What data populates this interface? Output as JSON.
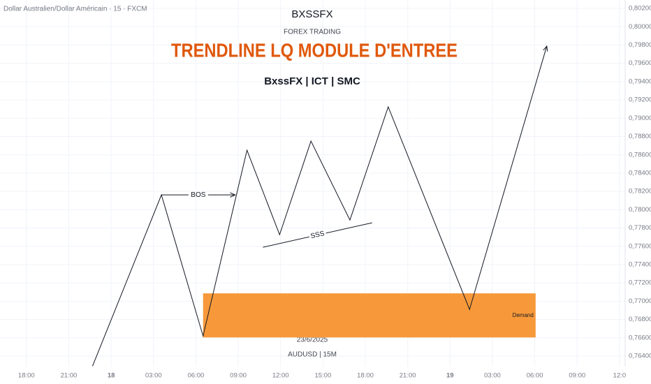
{
  "chart_data": {
    "type": "line",
    "symbol": "Dollar Australien/Dollar Américain · 15 · FXCM",
    "brand": "BXSSFX",
    "subtitle": "FOREX TRADING",
    "title": "TRENDLINE LQ MODULE D'ENTREE",
    "title_color": "#e0580c",
    "tagline": "BxssFX | ICT | SMC",
    "date": "23/6/2025",
    "pair": "AUDUSD | 15M",
    "x": [
      22.68,
      27.56,
      30.51,
      33.62,
      35.93,
      38.15,
      40.91,
      43.62,
      49.38,
      54.85
    ],
    "series": [
      {
        "color": "#131722",
        "values": [
          0.7629,
          0.78162,
          0.7662,
          0.7865,
          0.77727,
          0.7875,
          0.77887,
          0.79124,
          0.7691,
          0.79788
        ]
      }
    ],
    "zones": [
      {
        "label": "Demand",
        "color": "#f7993a",
        "x": [
          30.51,
          54.06
        ],
        "y": [
          0.76604,
          0.77086
        ]
      }
    ],
    "arrows": [
      {
        "label": "BOS",
        "x": [
          27.56,
          32.78
        ],
        "y": [
          0.78162,
          0.78162
        ]
      }
    ],
    "lines": [
      {
        "label": "SSS",
        "x": [
          34.75,
          42.48
        ],
        "y": [
          0.7759,
          0.77857
        ]
      }
    ],
    "xlim": [
      16.13,
      60.4
    ],
    "ylim": [
      0.76286,
      0.80292
    ],
    "xticks": [
      {
        "value": 18,
        "label": "18:00"
      },
      {
        "value": 21,
        "label": "21:00"
      },
      {
        "value": 24,
        "label": "18"
      },
      {
        "value": 27,
        "label": "03:00"
      },
      {
        "value": 30,
        "label": "06:00"
      },
      {
        "value": 33,
        "label": "09:00"
      },
      {
        "value": 36,
        "label": "12:00"
      },
      {
        "value": 39,
        "label": "15:00"
      },
      {
        "value": 42,
        "label": "18:00"
      },
      {
        "value": 45,
        "label": "21:00"
      },
      {
        "value": 48,
        "label": "19"
      },
      {
        "value": 51,
        "label": "03:00"
      },
      {
        "value": 54,
        "label": "06:00"
      },
      {
        "value": 57,
        "label": "09:00"
      },
      {
        "value": 60,
        "label": "12:0"
      }
    ],
    "yticks": [
      {
        "value": 0.764,
        "label": "0,76400"
      },
      {
        "value": 0.766,
        "label": "0,76600"
      },
      {
        "value": 0.768,
        "label": "0,76800"
      },
      {
        "value": 0.77,
        "label": "0,77000"
      },
      {
        "value": 0.772,
        "label": "0,77200"
      },
      {
        "value": 0.774,
        "label": "0,77400"
      },
      {
        "value": 0.776,
        "label": "0,77600"
      },
      {
        "value": 0.778,
        "label": "0,77800"
      },
      {
        "value": 0.78,
        "label": "0,78000"
      },
      {
        "value": 0.782,
        "label": "0,78200"
      },
      {
        "value": 0.784,
        "label": "0,78400"
      },
      {
        "value": 0.786,
        "label": "0,78600"
      },
      {
        "value": 0.788,
        "label": "0,78800"
      },
      {
        "value": 0.79,
        "label": "0,79000"
      },
      {
        "value": 0.792,
        "label": "0,79200"
      },
      {
        "value": 0.794,
        "label": "0,79400"
      },
      {
        "value": 0.796,
        "label": "0,79600"
      },
      {
        "value": 0.798,
        "label": "0,79800"
      },
      {
        "value": 0.8,
        "label": "0,80000"
      },
      {
        "value": 0.802,
        "label": "0,80200"
      }
    ],
    "grid": true
  }
}
